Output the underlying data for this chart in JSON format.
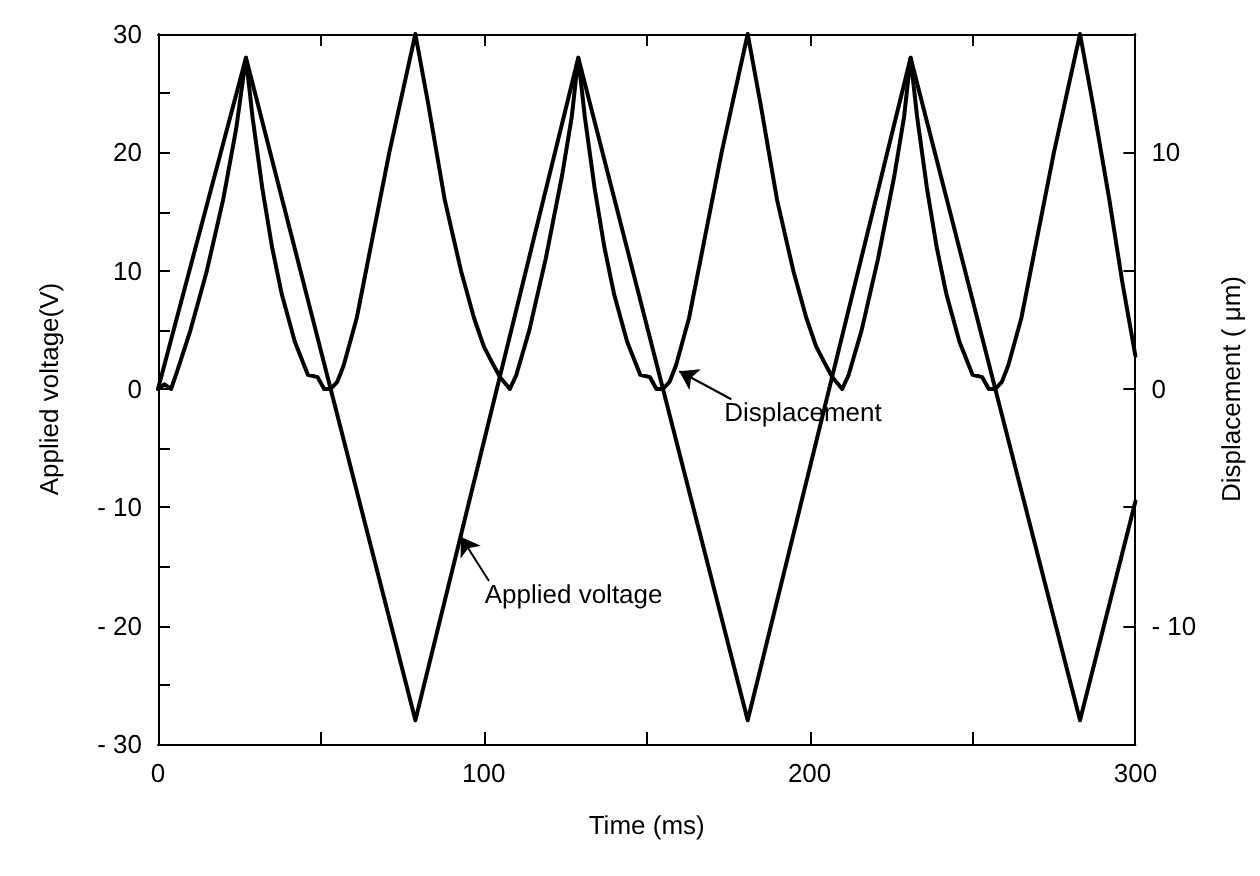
{
  "chart_data": {
    "type": "line",
    "xlabel": "Time (ms)",
    "ylabel": "Applied voltage(V)",
    "y2label": "Displacement ( μm)",
    "xlim": [
      0,
      300
    ],
    "xticks": [
      0,
      {
        "value": 50,
        "label": null
      },
      100,
      {
        "value": 150,
        "label": null
      },
      200,
      {
        "value": 250,
        "label": null
      },
      300
    ],
    "ylim": [
      -30,
      30
    ],
    "yticks": [
      {
        "value": -30,
        "label": "- 30"
      },
      {
        "value": -25,
        "label": null
      },
      {
        "value": -20,
        "label": "- 20"
      },
      {
        "value": -15,
        "label": null
      },
      {
        "value": -10,
        "label": "- 10"
      },
      {
        "value": -5,
        "label": null
      },
      0,
      {
        "value": 5,
        "label": null
      },
      10,
      {
        "value": 15,
        "label": null
      },
      20,
      {
        "value": 25,
        "label": null
      },
      30
    ],
    "y2lim": [
      -15,
      15
    ],
    "y2ticks": [
      {
        "value": -10,
        "label": "- 10"
      },
      {
        "value": -5,
        "label": null
      },
      0,
      {
        "value": 5,
        "label": null
      },
      10
    ],
    "grid": false,
    "marker": "none",
    "line_style": "solid",
    "series": [
      {
        "color": "#000000",
        "x": [
          0,
          27,
          79,
          129,
          181,
          231,
          283,
          300
        ],
        "values": [
          0,
          28,
          -28,
          28,
          -28,
          28,
          -28,
          -9.5
        ]
      },
      {
        "color": "#000000",
        "axis": "y2",
        "x": [
          0,
          2,
          4,
          6,
          10,
          15,
          20,
          24,
          27,
          29,
          32,
          35,
          38,
          42,
          46,
          49,
          51,
          53,
          55,
          57,
          61,
          66,
          71,
          75,
          79,
          83,
          88,
          93,
          97,
          100,
          103,
          105,
          108,
          110,
          114,
          119,
          124,
          127,
          129,
          131,
          134,
          137,
          140,
          144,
          148,
          151,
          153,
          155,
          157,
          159,
          163,
          168,
          173,
          177,
          181,
          185,
          190,
          195,
          199,
          202,
          205,
          207,
          210,
          212,
          216,
          221,
          226,
          229,
          231,
          233,
          236,
          239,
          242,
          246,
          250,
          253,
          255,
          257,
          259,
          261,
          265,
          270,
          275,
          279,
          283,
          287,
          292,
          296,
          300
        ],
        "values": [
          0,
          0.2,
          0,
          0.8,
          2.5,
          5,
          8,
          11,
          14,
          11.5,
          8.5,
          6,
          4,
          2,
          0.6,
          0.5,
          0,
          0,
          0.3,
          1,
          3,
          6.5,
          10,
          12.5,
          15,
          12,
          8,
          5,
          3,
          1.8,
          1,
          0.5,
          0,
          0.6,
          2.5,
          5.5,
          9,
          11.5,
          14,
          11.5,
          8.5,
          6,
          4,
          2,
          0.6,
          0.5,
          0,
          0,
          0.3,
          1,
          3,
          6.5,
          10,
          12.5,
          15,
          12,
          8,
          5,
          3,
          1.8,
          1,
          0.5,
          0,
          0.6,
          2.5,
          5.5,
          9,
          11.5,
          14,
          11.5,
          8.5,
          6,
          4,
          2,
          0.6,
          0.5,
          0,
          0,
          0.3,
          1,
          3,
          6.5,
          10,
          12.5,
          15,
          12,
          8,
          4.5,
          1.4
        ]
      }
    ],
    "annotations": [
      {
        "text": "Displacement",
        "x": 160,
        "y": 1.5
      },
      {
        "text": "Applied voltage",
        "x": 93,
        "y": -12.5
      }
    ]
  }
}
